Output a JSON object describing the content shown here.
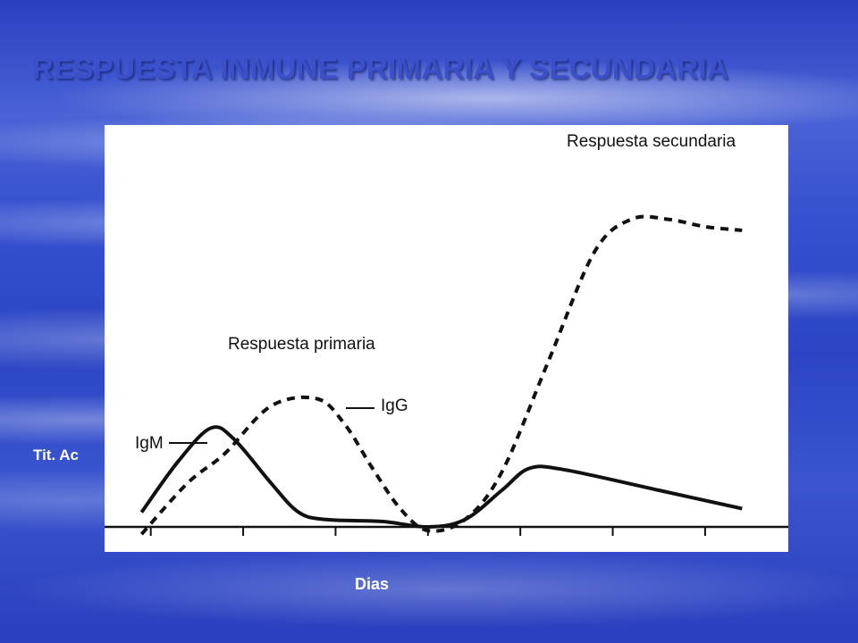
{
  "title": "RESPUESTA INMUNE PRIMARIA Y SECUNDARIA",
  "colors": {
    "title": "#3b4fc8",
    "axis_labels": "#ffffff",
    "plot_bg": "#ffffff",
    "lines": "#111111"
  },
  "chart_data": {
    "type": "line",
    "title": "RESPUESTA INMUNE PRIMARIA Y SECUNDARIA",
    "xlabel": "Dias",
    "ylabel": "Tit. Ac",
    "grid": false,
    "xlim": [
      0,
      7.4
    ],
    "ylim": [
      0,
      10
    ],
    "x_ticks": [
      0.5,
      1.5,
      2.5,
      3.5,
      4.5,
      5.5,
      6.5
    ],
    "annotations": [
      {
        "text": "Respuesta primaria"
      },
      {
        "text": "Respuesta secundaria"
      }
    ],
    "series": [
      {
        "name": "IgM",
        "style": "solid",
        "points": [
          [
            0.4,
            0.4
          ],
          [
            0.8,
            1.8
          ],
          [
            1.15,
            2.7
          ],
          [
            1.4,
            2.4
          ],
          [
            1.8,
            1.2
          ],
          [
            2.1,
            0.4
          ],
          [
            2.4,
            0.2
          ],
          [
            3.0,
            0.15
          ],
          [
            3.5,
            0.0
          ],
          [
            3.9,
            0.2
          ],
          [
            4.3,
            1.0
          ],
          [
            4.6,
            1.6
          ],
          [
            5.0,
            1.55
          ],
          [
            6.0,
            1.0
          ],
          [
            6.9,
            0.5
          ]
        ]
      },
      {
        "name": "IgG",
        "style": "dashed",
        "points": [
          [
            0.4,
            -0.2
          ],
          [
            0.9,
            1.2
          ],
          [
            1.3,
            2.0
          ],
          [
            1.8,
            3.3
          ],
          [
            2.3,
            3.5
          ],
          [
            2.6,
            2.8
          ],
          [
            2.9,
            1.6
          ],
          [
            3.2,
            0.5
          ],
          [
            3.5,
            -0.1
          ],
          [
            3.9,
            0.2
          ],
          [
            4.3,
            1.5
          ],
          [
            4.8,
            4.5
          ],
          [
            5.3,
            7.5
          ],
          [
            5.7,
            8.4
          ],
          [
            6.1,
            8.4
          ],
          [
            6.5,
            8.2
          ],
          [
            6.9,
            8.1
          ]
        ]
      }
    ]
  }
}
